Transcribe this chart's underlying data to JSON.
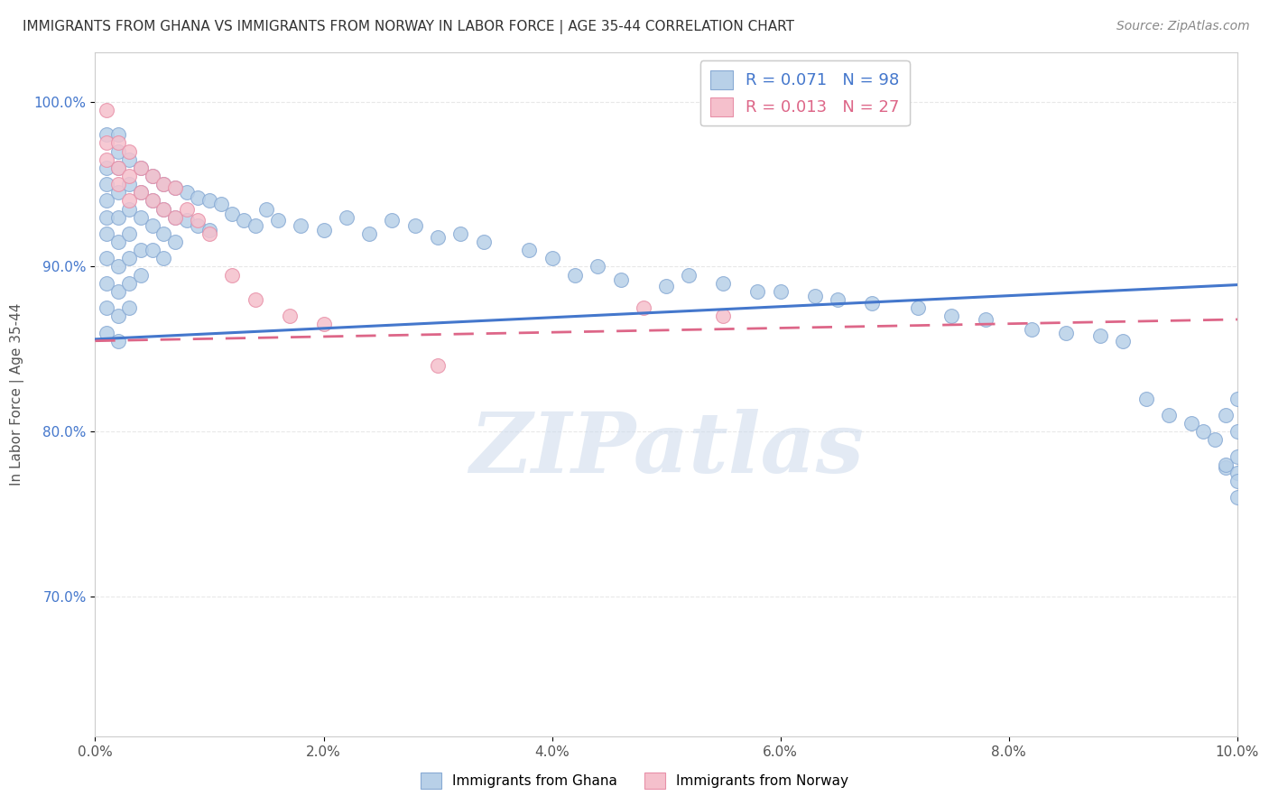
{
  "title": "IMMIGRANTS FROM GHANA VS IMMIGRANTS FROM NORWAY IN LABOR FORCE | AGE 35-44 CORRELATION CHART",
  "source": "Source: ZipAtlas.com",
  "ylabel": "In Labor Force | Age 35-44",
  "xlim": [
    0.0,
    0.1
  ],
  "ylim": [
    0.615,
    1.03
  ],
  "ghana_color": "#b8d0e8",
  "norway_color": "#f5c0cc",
  "ghana_edge": "#88aad4",
  "norway_edge": "#e890a8",
  "ghana_R": 0.071,
  "ghana_N": 98,
  "norway_R": 0.013,
  "norway_N": 27,
  "trend_ghana_color": "#4477cc",
  "trend_norway_color": "#dd6688",
  "ghana_x": [
    0.001,
    0.001,
    0.001,
    0.001,
    0.001,
    0.001,
    0.001,
    0.001,
    0.001,
    0.001,
    0.002,
    0.002,
    0.002,
    0.002,
    0.002,
    0.002,
    0.002,
    0.002,
    0.002,
    0.002,
    0.003,
    0.003,
    0.003,
    0.003,
    0.003,
    0.003,
    0.003,
    0.004,
    0.004,
    0.004,
    0.004,
    0.004,
    0.005,
    0.005,
    0.005,
    0.005,
    0.006,
    0.006,
    0.006,
    0.006,
    0.007,
    0.007,
    0.007,
    0.008,
    0.008,
    0.009,
    0.009,
    0.01,
    0.01,
    0.011,
    0.012,
    0.013,
    0.014,
    0.015,
    0.016,
    0.018,
    0.02,
    0.022,
    0.024,
    0.026,
    0.028,
    0.03,
    0.032,
    0.034,
    0.038,
    0.04,
    0.042,
    0.044,
    0.046,
    0.05,
    0.052,
    0.055,
    0.058,
    0.06,
    0.063,
    0.065,
    0.068,
    0.072,
    0.075,
    0.078,
    0.082,
    0.085,
    0.088,
    0.09,
    0.092,
    0.094,
    0.096,
    0.097,
    0.098,
    0.099,
    0.099,
    0.099,
    0.1,
    0.1,
    0.1,
    0.1,
    0.1,
    0.1
  ],
  "ghana_y": [
    0.98,
    0.96,
    0.95,
    0.94,
    0.93,
    0.92,
    0.905,
    0.89,
    0.875,
    0.86,
    0.98,
    0.97,
    0.96,
    0.945,
    0.93,
    0.915,
    0.9,
    0.885,
    0.87,
    0.855,
    0.965,
    0.95,
    0.935,
    0.92,
    0.905,
    0.89,
    0.875,
    0.96,
    0.945,
    0.93,
    0.91,
    0.895,
    0.955,
    0.94,
    0.925,
    0.91,
    0.95,
    0.935,
    0.92,
    0.905,
    0.948,
    0.93,
    0.915,
    0.945,
    0.928,
    0.942,
    0.925,
    0.94,
    0.922,
    0.938,
    0.932,
    0.928,
    0.925,
    0.935,
    0.928,
    0.925,
    0.922,
    0.93,
    0.92,
    0.928,
    0.925,
    0.918,
    0.92,
    0.915,
    0.91,
    0.905,
    0.895,
    0.9,
    0.892,
    0.888,
    0.895,
    0.89,
    0.885,
    0.885,
    0.882,
    0.88,
    0.878,
    0.875,
    0.87,
    0.868,
    0.862,
    0.86,
    0.858,
    0.855,
    0.82,
    0.81,
    0.805,
    0.8,
    0.795,
    0.81,
    0.778,
    0.78,
    0.785,
    0.8,
    0.82,
    0.775,
    0.77,
    0.76
  ],
  "norway_x": [
    0.001,
    0.001,
    0.001,
    0.002,
    0.002,
    0.002,
    0.003,
    0.003,
    0.003,
    0.004,
    0.004,
    0.005,
    0.005,
    0.006,
    0.006,
    0.007,
    0.007,
    0.008,
    0.009,
    0.01,
    0.012,
    0.014,
    0.017,
    0.02,
    0.03,
    0.048,
    0.055
  ],
  "norway_y": [
    0.995,
    0.975,
    0.965,
    0.975,
    0.96,
    0.95,
    0.97,
    0.955,
    0.94,
    0.96,
    0.945,
    0.955,
    0.94,
    0.95,
    0.935,
    0.948,
    0.93,
    0.935,
    0.928,
    0.92,
    0.895,
    0.88,
    0.87,
    0.865,
    0.84,
    0.875,
    0.87
  ],
  "xticks": [
    0.0,
    0.02,
    0.04,
    0.06,
    0.08,
    0.1
  ],
  "xtick_labels": [
    "0.0%",
    "2.0%",
    "4.0%",
    "6.0%",
    "8.0%",
    "10.0%"
  ],
  "yticks": [
    0.7,
    0.8,
    0.9,
    1.0
  ],
  "ytick_labels": [
    "70.0%",
    "80.0%",
    "90.0%",
    "100.0%"
  ],
  "background_color": "#ffffff",
  "grid_color": "#e8e8e8"
}
